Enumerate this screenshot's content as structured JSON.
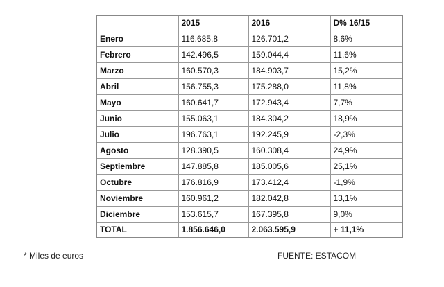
{
  "table": {
    "columns": [
      "2015",
      "2016",
      "D% 16/15"
    ],
    "rows": [
      [
        "Enero",
        "116.685,8",
        "126.701,2",
        "8,6%"
      ],
      [
        "Febrero",
        "142.496,5",
        "159.044,4",
        "11,6%"
      ],
      [
        "Marzo",
        "160.570,3",
        "184.903,7",
        "15,2%"
      ],
      [
        "Abril",
        "156.755,3",
        "175.288,0",
        "11,8%"
      ],
      [
        "Mayo",
        "160.641,7",
        "172.943,4",
        "7,7%"
      ],
      [
        "Junio",
        "155.063,1",
        "184.304,2",
        "18,9%"
      ],
      [
        "Julio",
        "196.763,1",
        "192.245,9",
        "-2,3%"
      ],
      [
        "Agosto",
        "128.390,5",
        "160.308,4",
        "24,9%"
      ],
      [
        "Septiembre",
        "147.885,8",
        "185.005,6",
        "25,1%"
      ],
      [
        "Octubre",
        "176.816,9",
        "173.412,4",
        "-1,9%"
      ],
      [
        "Noviembre",
        "160.961,2",
        "182.042,8",
        "13,1%"
      ],
      [
        "Diciembre",
        "153.615,7",
        "167.395,8",
        "9,0%"
      ],
      [
        "TOTAL",
        "1.856.646,0",
        "2.063.595,9",
        "+ 11,1%"
      ]
    ]
  },
  "footnote": "* Miles de euros",
  "source": "FUENTE: ESTACOM"
}
